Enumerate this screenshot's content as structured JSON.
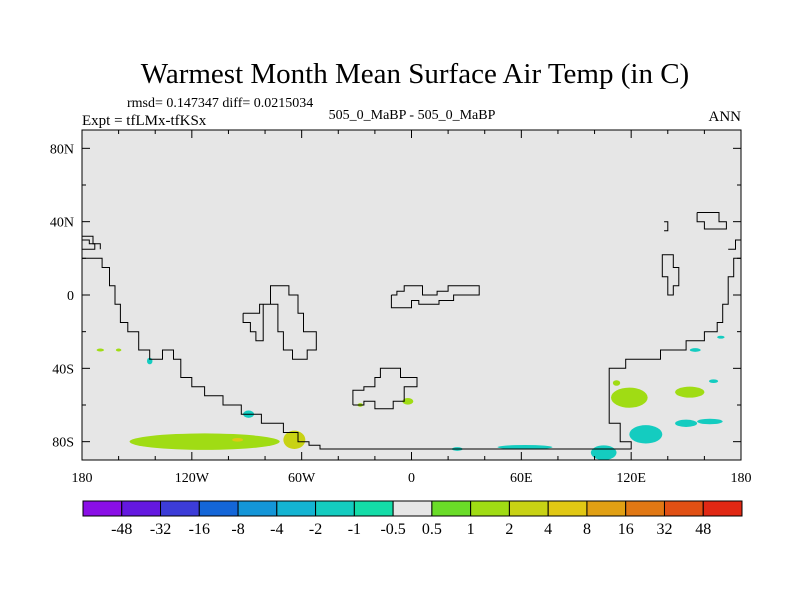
{
  "chart_data": {
    "type": "heatmap",
    "title": "Warmest Month Mean Surface Air Temp (in C)",
    "stats": "rmsd= 0.147347 diff= 0.0215034",
    "left_label": "Expt = tfLMx-tfKSx",
    "center_label": "505_0_MaBP - 505_0_MaBP",
    "right_label": "ANN",
    "xlim": [
      -180,
      180
    ],
    "ylim": [
      -90,
      90
    ],
    "x_ticks": [
      {
        "value": -180,
        "label": "180"
      },
      {
        "value": -120,
        "label": "120W"
      },
      {
        "value": -60,
        "label": "60W"
      },
      {
        "value": 0,
        "label": "0"
      },
      {
        "value": 60,
        "label": "60E"
      },
      {
        "value": 120,
        "label": "120E"
      },
      {
        "value": 180,
        "label": "180"
      }
    ],
    "y_ticks": [
      {
        "value": 80,
        "label": "80N"
      },
      {
        "value": 40,
        "label": "40N"
      },
      {
        "value": 0,
        "label": "0"
      },
      {
        "value": -40,
        "label": "40S"
      },
      {
        "value": -80,
        "label": "80S"
      }
    ],
    "colorbar": {
      "colors": [
        "#8a0fe6",
        "#6418e0",
        "#3c3cd8",
        "#1466d8",
        "#1496d8",
        "#14b4d2",
        "#14ccc0",
        "#14dca8",
        "#e6e6e6",
        "#6adc28",
        "#a0dc14",
        "#c8d214",
        "#e1c814",
        "#e1a014",
        "#e17814",
        "#e15014",
        "#e12814"
      ],
      "labels": [
        "-48",
        "-32",
        "-16",
        "-8",
        "-4",
        "-2",
        "-1",
        "-0.5",
        "0.5",
        "1",
        "2",
        "4",
        "8",
        "16",
        "32",
        "48"
      ]
    },
    "field_color": "#e6e6e6",
    "anomalies": [
      {
        "lon": -113,
        "lat": -80,
        "rx": 41,
        "ry": 4.5,
        "bin": "1"
      },
      {
        "lon": -93,
        "lat": -80,
        "rx": 12,
        "ry": 3,
        "bin": "1"
      },
      {
        "lon": -95,
        "lat": -79,
        "rx": 3,
        "ry": 1,
        "bin": "4"
      },
      {
        "lon": -64,
        "lat": -79,
        "rx": 6,
        "ry": 5,
        "bin": "2"
      },
      {
        "lon": -89,
        "lat": -65,
        "rx": 3,
        "ry": 2,
        "bin": "-1"
      },
      {
        "lon": -170,
        "lat": -30,
        "rx": 2,
        "ry": 0.8,
        "bin": "1"
      },
      {
        "lon": -160,
        "lat": -30,
        "rx": 1.5,
        "ry": 0.8,
        "bin": "1"
      },
      {
        "lon": -143,
        "lat": -36,
        "rx": 1.5,
        "ry": 1.8,
        "bin": "-1"
      },
      {
        "lon": -28,
        "lat": -60,
        "rx": 1.5,
        "ry": 1,
        "bin": "1"
      },
      {
        "lon": -2,
        "lat": -58,
        "rx": 3,
        "ry": 1.8,
        "bin": "1"
      },
      {
        "lon": 119,
        "lat": -56,
        "rx": 10,
        "ry": 5.5,
        "bin": "1"
      },
      {
        "lon": 112,
        "lat": -48,
        "rx": 2,
        "ry": 1.5,
        "bin": "1"
      },
      {
        "lon": 152,
        "lat": -53,
        "rx": 8,
        "ry": 3,
        "bin": "1"
      },
      {
        "lon": 165,
        "lat": -47,
        "rx": 2.5,
        "ry": 1,
        "bin": "-1"
      },
      {
        "lon": 155,
        "lat": -30,
        "rx": 3,
        "ry": 1,
        "bin": "-1"
      },
      {
        "lon": 169,
        "lat": -23,
        "rx": 2,
        "ry": 0.8,
        "bin": "-1"
      },
      {
        "lon": 150,
        "lat": -70,
        "rx": 6,
        "ry": 2,
        "bin": "-1"
      },
      {
        "lon": 128,
        "lat": -76,
        "rx": 9,
        "ry": 5,
        "bin": "-1"
      },
      {
        "lon": 163,
        "lat": -69,
        "rx": 7,
        "ry": 1.5,
        "bin": "-1"
      },
      {
        "lon": 62,
        "lat": -83,
        "rx": 15,
        "ry": 1.2,
        "bin": "-1"
      },
      {
        "lon": 105,
        "lat": -86,
        "rx": 7,
        "ry": 4,
        "bin": "-1"
      },
      {
        "lon": 25,
        "lat": -84,
        "rx": 3,
        "ry": 1,
        "bin": "-1"
      }
    ],
    "contours": [
      [
        [
          -180,
          30
        ],
        [
          -176,
          30
        ],
        [
          -176,
          28
        ],
        [
          -173,
          28
        ],
        [
          -173,
          25
        ],
        [
          -180,
          25
        ]
      ],
      [
        [
          -180,
          20
        ],
        [
          -169,
          20
        ],
        [
          -169,
          15
        ],
        [
          -165,
          15
        ],
        [
          -165,
          5
        ],
        [
          -162,
          5
        ],
        [
          -162,
          -5
        ],
        [
          -159,
          -5
        ],
        [
          -159,
          -15
        ],
        [
          -155,
          -15
        ],
        [
          -155,
          -20
        ],
        [
          -149,
          -20
        ],
        [
          -149,
          -30
        ],
        [
          -143,
          -30
        ],
        [
          -143,
          -35
        ],
        [
          -136,
          -35
        ],
        [
          -136,
          -30
        ],
        [
          -130,
          -30
        ],
        [
          -130,
          -35
        ],
        [
          -126,
          -35
        ],
        [
          -126,
          -45
        ],
        [
          -120,
          -45
        ],
        [
          -120,
          -50
        ],
        [
          -113,
          -50
        ],
        [
          -113,
          -55
        ],
        [
          -103,
          -55
        ],
        [
          -103,
          -60
        ],
        [
          -93,
          -60
        ],
        [
          -93,
          -65
        ],
        [
          -82,
          -65
        ],
        [
          -82,
          -70
        ],
        [
          -70,
          -70
        ],
        [
          -70,
          -75
        ],
        [
          -62,
          -75
        ],
        [
          -62,
          -80
        ],
        [
          -56,
          -80
        ],
        [
          -56,
          -82
        ],
        [
          -50,
          -82
        ],
        [
          -50,
          -84
        ],
        [
          -1,
          -84
        ],
        [
          120,
          -84
        ],
        [
          120,
          -80
        ],
        [
          114,
          -80
        ],
        [
          114,
          -70
        ],
        [
          108,
          -70
        ],
        [
          108,
          -40
        ],
        [
          117,
          -40
        ],
        [
          117,
          -35
        ],
        [
          136,
          -35
        ],
        [
          136,
          -30
        ],
        [
          150,
          -30
        ],
        [
          150,
          -25
        ],
        [
          160,
          -25
        ],
        [
          160,
          -20
        ],
        [
          167,
          -20
        ],
        [
          167,
          -15
        ],
        [
          170,
          -15
        ],
        [
          170,
          -5
        ],
        [
          173,
          -5
        ],
        [
          173,
          10
        ],
        [
          176,
          10
        ],
        [
          176,
          20
        ],
        [
          180,
          20
        ]
      ],
      [
        [
          -180,
          32
        ],
        [
          -174,
          32
        ],
        [
          -174,
          28
        ],
        [
          -170,
          28
        ],
        [
          -170,
          25
        ]
      ],
      [
        [
          -92,
          -10
        ],
        [
          -83,
          -10
        ],
        [
          -83,
          -5
        ],
        [
          -73,
          -5
        ],
        [
          -73,
          -20
        ],
        [
          -70,
          -20
        ],
        [
          -70,
          -30
        ],
        [
          -65,
          -30
        ],
        [
          -65,
          -35
        ],
        [
          -57,
          -35
        ],
        [
          -57,
          -30
        ],
        [
          -52,
          -30
        ],
        [
          -52,
          -20
        ],
        [
          -59,
          -20
        ],
        [
          -59,
          -10
        ],
        [
          -62,
          -10
        ],
        [
          -62,
          0
        ],
        [
          -67,
          0
        ],
        [
          -67,
          5
        ],
        [
          -77,
          5
        ],
        [
          -77,
          -5
        ],
        [
          -81,
          -5
        ],
        [
          -81,
          -25
        ],
        [
          -85,
          -25
        ],
        [
          -85,
          -20
        ],
        [
          -88,
          -20
        ],
        [
          -88,
          -15
        ],
        [
          -92,
          -15
        ],
        [
          -92,
          -10
        ]
      ],
      [
        [
          -32,
          -60
        ],
        [
          -26,
          -60
        ],
        [
          -26,
          -58
        ],
        [
          -20,
          -58
        ],
        [
          -20,
          -62
        ],
        [
          -10,
          -62
        ],
        [
          -10,
          -58
        ],
        [
          -4,
          -58
        ],
        [
          -4,
          -50
        ],
        [
          3,
          -50
        ],
        [
          3,
          -45
        ],
        [
          -6,
          -45
        ],
        [
          -6,
          -40
        ],
        [
          -17,
          -40
        ],
        [
          -17,
          -45
        ],
        [
          -20,
          -45
        ],
        [
          -20,
          -50
        ],
        [
          -26,
          -50
        ],
        [
          -26,
          -52
        ],
        [
          -32,
          -52
        ],
        [
          -32,
          -60
        ]
      ],
      [
        [
          -11,
          0
        ],
        [
          -8,
          0
        ],
        [
          -8,
          2
        ],
        [
          -4,
          2
        ],
        [
          -4,
          5
        ],
        [
          6,
          5
        ],
        [
          6,
          0
        ],
        [
          14,
          0
        ],
        [
          14,
          2
        ],
        [
          20,
          2
        ],
        [
          20,
          5
        ],
        [
          37,
          5
        ],
        [
          37,
          0
        ],
        [
          23,
          0
        ],
        [
          23,
          -3
        ],
        [
          15,
          -3
        ],
        [
          15,
          -5
        ],
        [
          4,
          -5
        ],
        [
          4,
          -3
        ],
        [
          0,
          -3
        ],
        [
          0,
          -7
        ],
        [
          -11,
          -7
        ],
        [
          -11,
          0
        ]
      ],
      [
        [
          138,
          35
        ],
        [
          140,
          35
        ],
        [
          140,
          40
        ],
        [
          138,
          40
        ]
      ],
      [
        [
          140,
          22
        ],
        [
          143,
          22
        ],
        [
          143,
          15
        ],
        [
          146,
          15
        ],
        [
          146,
          5
        ],
        [
          143,
          5
        ],
        [
          143,
          0
        ],
        [
          140,
          0
        ],
        [
          140,
          10
        ],
        [
          137,
          10
        ],
        [
          137,
          22
        ],
        [
          140,
          22
        ]
      ],
      [
        [
          156,
          45
        ],
        [
          168,
          45
        ],
        [
          168,
          40
        ],
        [
          172,
          40
        ],
        [
          172,
          36
        ],
        [
          160,
          36
        ],
        [
          160,
          40
        ],
        [
          156,
          40
        ],
        [
          156,
          45
        ]
      ],
      [
        [
          173,
          25
        ],
        [
          177,
          25
        ],
        [
          177,
          30
        ],
        [
          180,
          30
        ]
      ]
    ]
  }
}
